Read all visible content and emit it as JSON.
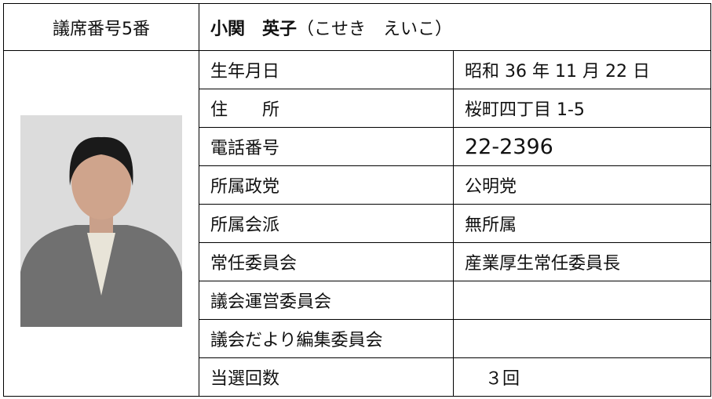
{
  "header": {
    "seat": "議席番号5番",
    "name": "小関　英子",
    "reading": "（こせき　えいこ）"
  },
  "table": {
    "rows": [
      [
        "生年月日",
        "昭和 36 年 11 月 22 日"
      ],
      [
        "住　　所",
        "桜町四丁目 1-5"
      ],
      [
        "電話番号",
        "22-2396"
      ],
      [
        "所属政党",
        "公明党"
      ],
      [
        "所属会派",
        "無所属"
      ],
      [
        "常任委員会",
        "産業厚生常任委員長"
      ],
      [
        "議会運営委員会"
      ],
      [
        "議会だより編集委員会"
      ],
      [
        "当選回数",
        "３回"
      ]
    ]
  }
}
